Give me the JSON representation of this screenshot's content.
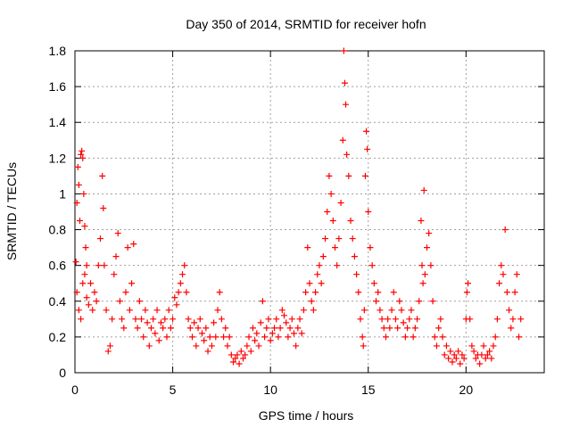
{
  "chart_data": {
    "type": "scatter",
    "title": "Day 350 of 2014, SRMTID for receiver hofn",
    "xlabel": "GPS time / hours",
    "ylabel": "SRMTID / TECUs",
    "xlim": [
      0,
      24
    ],
    "ylim": [
      0,
      1.8
    ],
    "xticks": [
      0,
      5,
      10,
      15,
      20
    ],
    "yticks": [
      0,
      0.2,
      0.4,
      0.6,
      0.8,
      1,
      1.2,
      1.4,
      1.6,
      1.8
    ],
    "xtick_labels": [
      "0",
      "5",
      "10",
      "15",
      "20"
    ],
    "ytick_labels": [
      "0",
      "0.2",
      "0.4",
      "0.6",
      "0.8",
      "1",
      "1.2",
      "1.4",
      "1.6",
      "1.8"
    ],
    "grid": true,
    "marker": "+",
    "color": "#ff0000",
    "series": [
      {
        "name": "SRMTID",
        "points": [
          [
            0.05,
            0.62
          ],
          [
            0.1,
            0.95
          ],
          [
            0.15,
            1.15
          ],
          [
            0.2,
            1.05
          ],
          [
            0.25,
            0.85
          ],
          [
            0.3,
            1.22
          ],
          [
            0.35,
            1.24
          ],
          [
            0.4,
            1.2
          ],
          [
            0.45,
            1.0
          ],
          [
            0.5,
            0.82
          ],
          [
            0.55,
            0.7
          ],
          [
            0.6,
            0.6
          ],
          [
            0.1,
            0.45
          ],
          [
            0.2,
            0.35
          ],
          [
            0.3,
            0.3
          ],
          [
            0.4,
            0.5
          ],
          [
            0.5,
            0.55
          ],
          [
            0.6,
            0.42
          ],
          [
            0.7,
            0.38
          ],
          [
            0.8,
            0.5
          ],
          [
            0.9,
            0.35
          ],
          [
            1.0,
            0.45
          ],
          [
            1.1,
            0.4
          ],
          [
            1.2,
            0.6
          ],
          [
            1.3,
            0.75
          ],
          [
            1.4,
            1.1
          ],
          [
            1.45,
            0.92
          ],
          [
            1.5,
            0.6
          ],
          [
            1.6,
            0.35
          ],
          [
            1.7,
            0.12
          ],
          [
            1.8,
            0.15
          ],
          [
            1.9,
            0.3
          ],
          [
            2.0,
            0.55
          ],
          [
            2.1,
            0.65
          ],
          [
            2.2,
            0.78
          ],
          [
            2.3,
            0.4
          ],
          [
            2.4,
            0.3
          ],
          [
            2.5,
            0.25
          ],
          [
            2.6,
            0.45
          ],
          [
            2.7,
            0.7
          ],
          [
            2.8,
            0.35
          ],
          [
            2.9,
            0.5
          ],
          [
            3.0,
            0.72
          ],
          [
            3.1,
            0.3
          ],
          [
            3.2,
            0.25
          ],
          [
            3.3,
            0.4
          ],
          [
            3.4,
            0.3
          ],
          [
            3.5,
            0.2
          ],
          [
            3.6,
            0.35
          ],
          [
            3.7,
            0.28
          ],
          [
            3.8,
            0.15
          ],
          [
            3.9,
            0.25
          ],
          [
            4.0,
            0.3
          ],
          [
            4.1,
            0.22
          ],
          [
            4.2,
            0.35
          ],
          [
            4.3,
            0.18
          ],
          [
            4.4,
            0.28
          ],
          [
            4.5,
            0.25
          ],
          [
            4.6,
            0.3
          ],
          [
            4.7,
            0.2
          ],
          [
            4.8,
            0.35
          ],
          [
            4.9,
            0.25
          ],
          [
            5.0,
            0.3
          ],
          [
            5.1,
            0.42
          ],
          [
            5.2,
            0.38
          ],
          [
            5.3,
            0.45
          ],
          [
            5.4,
            0.5
          ],
          [
            5.5,
            0.55
          ],
          [
            5.6,
            0.6
          ],
          [
            5.7,
            0.45
          ],
          [
            5.8,
            0.3
          ],
          [
            5.9,
            0.25
          ],
          [
            6.0,
            0.2
          ],
          [
            6.1,
            0.28
          ],
          [
            6.2,
            0.15
          ],
          [
            6.3,
            0.25
          ],
          [
            6.4,
            0.3
          ],
          [
            6.5,
            0.22
          ],
          [
            6.6,
            0.18
          ],
          [
            6.7,
            0.25
          ],
          [
            6.8,
            0.12
          ],
          [
            6.9,
            0.2
          ],
          [
            7.0,
            0.15
          ],
          [
            7.1,
            0.28
          ],
          [
            7.2,
            0.2
          ],
          [
            7.3,
            0.35
          ],
          [
            7.4,
            0.45
          ],
          [
            7.5,
            0.3
          ],
          [
            7.6,
            0.2
          ],
          [
            7.7,
            0.25
          ],
          [
            7.8,
            0.15
          ],
          [
            7.9,
            0.2
          ],
          [
            8.0,
            0.1
          ],
          [
            8.1,
            0.06
          ],
          [
            8.2,
            0.08
          ],
          [
            8.3,
            0.1
          ],
          [
            8.4,
            0.05
          ],
          [
            8.5,
            0.12
          ],
          [
            8.6,
            0.08
          ],
          [
            8.7,
            0.1
          ],
          [
            8.8,
            0.15
          ],
          [
            8.9,
            0.2
          ],
          [
            9.0,
            0.12
          ],
          [
            9.1,
            0.25
          ],
          [
            9.2,
            0.18
          ],
          [
            9.3,
            0.22
          ],
          [
            9.4,
            0.15
          ],
          [
            9.5,
            0.28
          ],
          [
            9.6,
            0.4
          ],
          [
            9.7,
            0.2
          ],
          [
            9.8,
            0.25
          ],
          [
            9.9,
            0.3
          ],
          [
            10.0,
            0.18
          ],
          [
            10.1,
            0.22
          ],
          [
            10.2,
            0.25
          ],
          [
            10.3,
            0.3
          ],
          [
            10.4,
            0.2
          ],
          [
            10.5,
            0.25
          ],
          [
            10.6,
            0.35
          ],
          [
            10.7,
            0.32
          ],
          [
            10.8,
            0.28
          ],
          [
            10.9,
            0.2
          ],
          [
            11.0,
            0.25
          ],
          [
            11.1,
            0.3
          ],
          [
            11.2,
            0.22
          ],
          [
            11.3,
            0.15
          ],
          [
            11.4,
            0.25
          ],
          [
            11.5,
            0.3
          ],
          [
            11.6,
            0.22
          ],
          [
            11.7,
            0.35
          ],
          [
            11.8,
            0.45
          ],
          [
            11.9,
            0.7
          ],
          [
            12.0,
            0.5
          ],
          [
            12.1,
            0.4
          ],
          [
            12.2,
            0.35
          ],
          [
            12.3,
            0.45
          ],
          [
            12.4,
            0.55
          ],
          [
            12.5,
            0.6
          ],
          [
            12.6,
            0.5
          ],
          [
            12.7,
            0.65
          ],
          [
            12.8,
            0.75
          ],
          [
            12.9,
            0.9
          ],
          [
            13.0,
            1.1
          ],
          [
            13.1,
            1.0
          ],
          [
            13.2,
            0.85
          ],
          [
            13.3,
            0.7
          ],
          [
            13.4,
            0.6
          ],
          [
            13.5,
            0.75
          ],
          [
            13.6,
            0.95
          ],
          [
            13.7,
            1.3
          ],
          [
            13.75,
            1.8
          ],
          [
            13.8,
            1.62
          ],
          [
            13.85,
            1.5
          ],
          [
            13.9,
            1.22
          ],
          [
            14.0,
            1.1
          ],
          [
            14.1,
            0.85
          ],
          [
            14.2,
            0.75
          ],
          [
            14.3,
            0.65
          ],
          [
            14.4,
            0.55
          ],
          [
            14.5,
            0.45
          ],
          [
            14.6,
            0.3
          ],
          [
            14.7,
            0.2
          ],
          [
            14.75,
            0.15
          ],
          [
            14.8,
            0.35
          ],
          [
            14.85,
            1.1
          ],
          [
            14.9,
            1.35
          ],
          [
            14.95,
            1.25
          ],
          [
            15.0,
            0.9
          ],
          [
            15.1,
            0.7
          ],
          [
            15.2,
            0.6
          ],
          [
            15.3,
            0.5
          ],
          [
            15.4,
            0.4
          ],
          [
            15.5,
            0.45
          ],
          [
            15.6,
            0.35
          ],
          [
            15.7,
            0.3
          ],
          [
            15.8,
            0.25
          ],
          [
            15.9,
            0.2
          ],
          [
            16.0,
            0.3
          ],
          [
            16.1,
            0.25
          ],
          [
            16.2,
            0.35
          ],
          [
            16.3,
            0.45
          ],
          [
            16.4,
            0.3
          ],
          [
            16.5,
            0.25
          ],
          [
            16.6,
            0.4
          ],
          [
            16.7,
            0.35
          ],
          [
            16.8,
            0.28
          ],
          [
            16.9,
            0.2
          ],
          [
            17.0,
            0.25
          ],
          [
            17.1,
            0.3
          ],
          [
            17.2,
            0.35
          ],
          [
            17.3,
            0.2
          ],
          [
            17.4,
            0.25
          ],
          [
            17.5,
            0.3
          ],
          [
            17.6,
            0.4
          ],
          [
            17.7,
            0.85
          ],
          [
            17.75,
            0.6
          ],
          [
            17.8,
            0.5
          ],
          [
            17.85,
            1.02
          ],
          [
            17.9,
            0.55
          ],
          [
            18.0,
            0.7
          ],
          [
            18.1,
            0.78
          ],
          [
            18.2,
            0.6
          ],
          [
            18.3,
            0.4
          ],
          [
            18.4,
            0.2
          ],
          [
            18.5,
            0.15
          ],
          [
            18.6,
            0.25
          ],
          [
            18.7,
            0.3
          ],
          [
            18.8,
            0.2
          ],
          [
            18.9,
            0.1
          ],
          [
            19.0,
            0.15
          ],
          [
            19.1,
            0.08
          ],
          [
            19.2,
            0.12
          ],
          [
            19.3,
            0.06
          ],
          [
            19.4,
            0.1
          ],
          [
            19.5,
            0.08
          ],
          [
            19.6,
            0.12
          ],
          [
            19.7,
            0.05
          ],
          [
            19.8,
            0.1
          ],
          [
            19.9,
            0.08
          ],
          [
            20.0,
            0.3
          ],
          [
            20.05,
            0.45
          ],
          [
            20.1,
            0.5
          ],
          [
            20.2,
            0.3
          ],
          [
            20.3,
            0.15
          ],
          [
            20.4,
            0.12
          ],
          [
            20.5,
            0.08
          ],
          [
            20.6,
            0.1
          ],
          [
            20.7,
            0.05
          ],
          [
            20.8,
            0.1
          ],
          [
            20.9,
            0.15
          ],
          [
            21.0,
            0.08
          ],
          [
            21.1,
            0.1
          ],
          [
            21.2,
            0.12
          ],
          [
            21.3,
            0.08
          ],
          [
            21.4,
            0.15
          ],
          [
            21.5,
            0.2
          ],
          [
            21.6,
            0.3
          ],
          [
            21.7,
            0.5
          ],
          [
            21.8,
            0.6
          ],
          [
            21.9,
            0.55
          ],
          [
            22.0,
            0.8
          ],
          [
            22.1,
            0.45
          ],
          [
            22.2,
            0.35
          ],
          [
            22.3,
            0.25
          ],
          [
            22.4,
            0.3
          ],
          [
            22.5,
            0.45
          ],
          [
            22.6,
            0.55
          ],
          [
            22.7,
            0.2
          ],
          [
            22.8,
            0.3
          ]
        ]
      }
    ]
  }
}
